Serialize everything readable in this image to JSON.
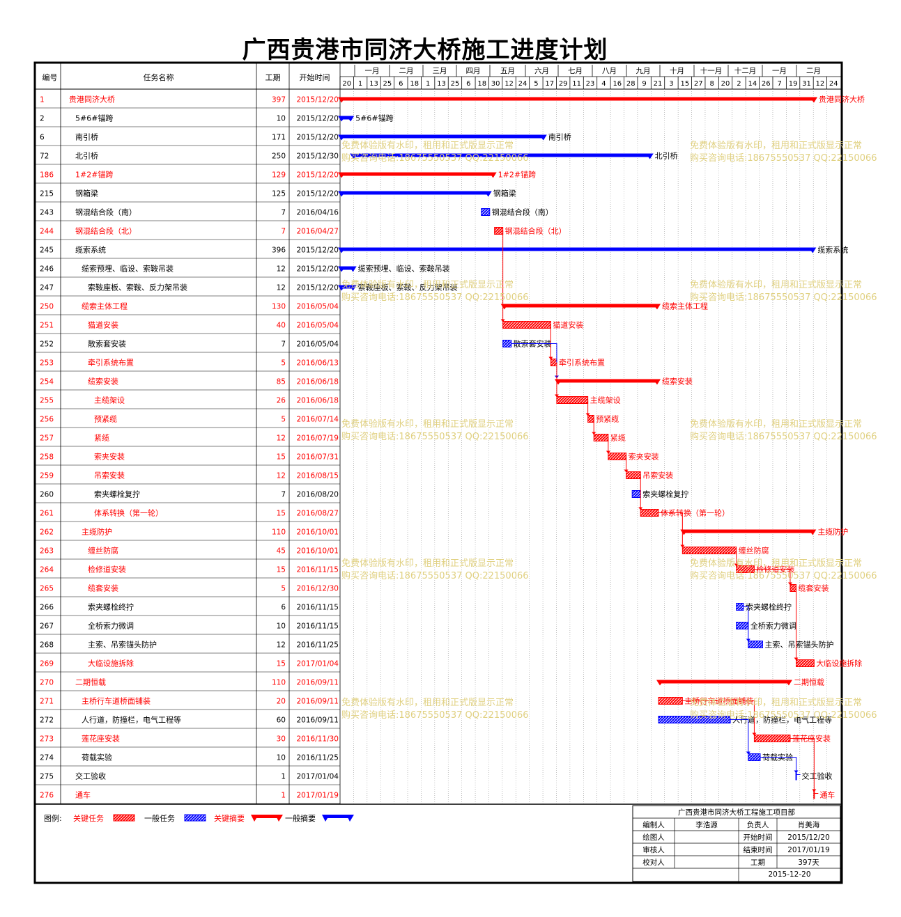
{
  "title": "广西贵港市同济大桥施工进度计划",
  "headers": {
    "id": "编号",
    "name": "任务名称",
    "duration": "工期",
    "start": "开始时间"
  },
  "months": [
    "一月",
    "二月",
    "三月",
    "四月",
    "五月",
    "六月",
    "七月",
    "八月",
    "九月",
    "十月",
    "十一月",
    "十二月",
    "一月",
    "二月"
  ],
  "days": [
    "20",
    "1",
    "13",
    "25",
    "6",
    "18",
    "1",
    "13",
    "25",
    "6",
    "18",
    "30",
    "12",
    "24",
    "5",
    "17",
    "29",
    "11",
    "23",
    "4",
    "16",
    "28",
    "9",
    "21",
    "3",
    "15",
    "27",
    "8",
    "20",
    "2",
    "14",
    "26",
    "7",
    "19",
    "31",
    "12",
    "24"
  ],
  "colors": {
    "critical": "#ff0000",
    "normal": "#0000ff",
    "critical_text": "#ff0000",
    "normal_text": "#000000"
  },
  "chart_data": {
    "type": "gantt",
    "x_range": [
      "2015-12-20",
      "2017-02-28"
    ],
    "tasks": [
      {
        "id": "1",
        "name": "贵港同济大桥",
        "duration": "397",
        "start": "2015/12/20",
        "s": "2015-12-20",
        "d": 397,
        "level": 0,
        "critical": true,
        "summary": true,
        "label": "贵港同济大桥"
      },
      {
        "id": "2",
        "name": "5#6#锚跨",
        "duration": "10",
        "start": "2015/12/20",
        "s": "2015-12-20",
        "d": 10,
        "level": 1,
        "critical": false,
        "summary": true,
        "label": "5#6#锚跨"
      },
      {
        "id": "6",
        "name": "南引桥",
        "duration": "171",
        "start": "2015/12/20",
        "s": "2015-12-20",
        "d": 171,
        "level": 1,
        "critical": false,
        "summary": true,
        "label": "南引桥"
      },
      {
        "id": "72",
        "name": "北引桥",
        "duration": "250",
        "start": "2015/12/30",
        "s": "2015-12-30",
        "d": 250,
        "level": 1,
        "critical": false,
        "summary": true,
        "label": "北引桥"
      },
      {
        "id": "186",
        "name": "1#2#锚跨",
        "duration": "129",
        "start": "2015/12/20",
        "s": "2015-12-20",
        "d": 129,
        "level": 1,
        "critical": true,
        "summary": true,
        "label": "1#2#锚跨"
      },
      {
        "id": "215",
        "name": "钢箱梁",
        "duration": "125",
        "start": "2015/12/20",
        "s": "2015-12-20",
        "d": 125,
        "level": 1,
        "critical": false,
        "summary": true,
        "label": "钢箱梁"
      },
      {
        "id": "243",
        "name": "钢混结合段（南）",
        "duration": "7",
        "start": "2016/04/16",
        "s": "2016-04-16",
        "d": 7,
        "level": 1,
        "critical": false,
        "summary": false,
        "label": "钢混结合段（南）"
      },
      {
        "id": "244",
        "name": "钢混结合段（北）",
        "duration": "7",
        "start": "2016/04/27",
        "s": "2016-04-27",
        "d": 7,
        "level": 1,
        "critical": true,
        "summary": false,
        "label": "钢混结合段（北）"
      },
      {
        "id": "245",
        "name": "缆索系统",
        "duration": "396",
        "start": "2015/12/20",
        "s": "2015-12-20",
        "d": 396,
        "level": 1,
        "critical": false,
        "summary": true,
        "label": "缆索系统"
      },
      {
        "id": "246",
        "name": "缆索预埋、临设、索鞍吊装",
        "duration": "12",
        "start": "2015/12/20",
        "s": "2015-12-20",
        "d": 12,
        "level": 2,
        "critical": false,
        "summary": true,
        "label": "缆索预埋、临设、索鞍吊装"
      },
      {
        "id": "247",
        "name": "索鞍座板、索鞍、反力架吊装",
        "duration": "12",
        "start": "2015/12/20",
        "s": "2015-12-20",
        "d": 12,
        "level": 3,
        "critical": false,
        "summary": true,
        "label": "索鞍座板、索鞍、反力架吊装"
      },
      {
        "id": "250",
        "name": "缆索主体工程",
        "duration": "130",
        "start": "2016/05/04",
        "s": "2016-05-04",
        "d": 130,
        "level": 2,
        "critical": true,
        "summary": true,
        "label": "缆索主体工程"
      },
      {
        "id": "251",
        "name": "猫道安装",
        "duration": "40",
        "start": "2016/05/04",
        "s": "2016-05-04",
        "d": 40,
        "level": 3,
        "critical": true,
        "summary": false,
        "label": "猫道安装"
      },
      {
        "id": "252",
        "name": "散索套安装",
        "duration": "7",
        "start": "2016/05/04",
        "s": "2016-05-04",
        "d": 7,
        "level": 3,
        "critical": false,
        "summary": false,
        "label": "散索套安装"
      },
      {
        "id": "253",
        "name": "牵引系统布置",
        "duration": "5",
        "start": "2016/06/13",
        "s": "2016-06-13",
        "d": 5,
        "level": 3,
        "critical": true,
        "summary": false,
        "label": "牵引系统布置"
      },
      {
        "id": "254",
        "name": "缆索安装",
        "duration": "85",
        "start": "2016/06/18",
        "s": "2016-06-18",
        "d": 85,
        "level": 3,
        "critical": true,
        "summary": true,
        "label": "缆索安装"
      },
      {
        "id": "255",
        "name": "主缆架设",
        "duration": "26",
        "start": "2016/06/18",
        "s": "2016-06-18",
        "d": 26,
        "level": 4,
        "critical": true,
        "summary": false,
        "label": "主缆架设"
      },
      {
        "id": "256",
        "name": "预紧缆",
        "duration": "5",
        "start": "2016/07/14",
        "s": "2016-07-14",
        "d": 5,
        "level": 4,
        "critical": true,
        "summary": false,
        "label": "预紧缆"
      },
      {
        "id": "257",
        "name": "紧缆",
        "duration": "12",
        "start": "2016/07/19",
        "s": "2016-07-19",
        "d": 12,
        "level": 4,
        "critical": true,
        "summary": false,
        "label": "紧缆"
      },
      {
        "id": "258",
        "name": "索夹安装",
        "duration": "15",
        "start": "2016/07/31",
        "s": "2016-07-31",
        "d": 15,
        "level": 4,
        "critical": true,
        "summary": false,
        "label": "索夹安装"
      },
      {
        "id": "259",
        "name": "吊索安装",
        "duration": "12",
        "start": "2016/08/15",
        "s": "2016-08-15",
        "d": 12,
        "level": 4,
        "critical": true,
        "summary": false,
        "label": "吊索安装"
      },
      {
        "id": "260",
        "name": "索夹螺栓复拧",
        "duration": "7",
        "start": "2016/08/20",
        "s": "2016-08-20",
        "d": 7,
        "level": 4,
        "critical": false,
        "summary": false,
        "label": "索夹螺栓复拧"
      },
      {
        "id": "261",
        "name": "体系转换（第一轮）",
        "duration": "15",
        "start": "2016/08/27",
        "s": "2016-08-27",
        "d": 15,
        "level": 4,
        "critical": true,
        "summary": false,
        "label": "体系转换（第一轮）"
      },
      {
        "id": "262",
        "name": "主缆防护",
        "duration": "110",
        "start": "2016/10/01",
        "s": "2016-10-01",
        "d": 110,
        "level": 2,
        "critical": true,
        "summary": true,
        "label": "主缆防护"
      },
      {
        "id": "263",
        "name": "缠丝防腐",
        "duration": "45",
        "start": "2016/10/01",
        "s": "2016-10-01",
        "d": 45,
        "level": 3,
        "critical": true,
        "summary": false,
        "label": "缠丝防腐"
      },
      {
        "id": "264",
        "name": "检修道安装",
        "duration": "15",
        "start": "2016/11/15",
        "s": "2016-11-15",
        "d": 15,
        "level": 3,
        "critical": true,
        "summary": false,
        "label": "检修道安装"
      },
      {
        "id": "265",
        "name": "缆套安装",
        "duration": "5",
        "start": "2016/12/30",
        "s": "2016-12-30",
        "d": 5,
        "level": 3,
        "critical": true,
        "summary": false,
        "label": "缆套安装"
      },
      {
        "id": "266",
        "name": "索夹螺栓终拧",
        "duration": "6",
        "start": "2016/11/15",
        "s": "2016-11-15",
        "d": 6,
        "level": 3,
        "critical": false,
        "summary": false,
        "label": "索夹螺栓终拧"
      },
      {
        "id": "267",
        "name": "全桥索力微调",
        "duration": "10",
        "start": "2016/11/15",
        "s": "2016-11-15",
        "d": 10,
        "level": 3,
        "critical": false,
        "summary": false,
        "label": "全桥索力微调"
      },
      {
        "id": "268",
        "name": "主索、吊索锚头防护",
        "duration": "12",
        "start": "2016/11/25",
        "s": "2016-11-25",
        "d": 12,
        "level": 3,
        "critical": false,
        "summary": false,
        "label": "主索、吊索锚头防护"
      },
      {
        "id": "269",
        "name": "大临设施拆除",
        "duration": "15",
        "start": "2017/01/04",
        "s": "2017-01-04",
        "d": 15,
        "level": 3,
        "critical": true,
        "summary": false,
        "label": "大临设施拆除"
      },
      {
        "id": "270",
        "name": "二期恒载",
        "duration": "110",
        "start": "2016/09/11",
        "s": "2016-09-11",
        "d": 110,
        "level": 1,
        "critical": true,
        "summary": true,
        "label": "二期恒载"
      },
      {
        "id": "271",
        "name": "主桥行车道桥面铺装",
        "duration": "20",
        "start": "2016/09/11",
        "s": "2016-09-11",
        "d": 20,
        "level": 2,
        "critical": true,
        "summary": false,
        "label": "主桥行车道桥面铺装"
      },
      {
        "id": "272",
        "name": "人行道，防撞栏，电气工程等",
        "duration": "60",
        "start": "2016/09/11",
        "s": "2016-09-11",
        "d": 60,
        "level": 2,
        "critical": false,
        "summary": false,
        "label": "人行道，防撞栏，电气工程等"
      },
      {
        "id": "273",
        "name": "莲花座安装",
        "duration": "30",
        "start": "2016/11/30",
        "s": "2016-11-30",
        "d": 30,
        "level": 2,
        "critical": true,
        "summary": false,
        "label": "莲花座安装"
      },
      {
        "id": "274",
        "name": "荷载实验",
        "duration": "10",
        "start": "2016/11/25",
        "s": "2016-11-25",
        "d": 10,
        "level": 2,
        "critical": false,
        "summary": false,
        "label": "荷载实验"
      },
      {
        "id": "275",
        "name": "交工验收",
        "duration": "1",
        "start": "2017/01/04",
        "s": "2017-01-04",
        "d": 1,
        "level": 1,
        "critical": false,
        "summary": false,
        "milestone": true,
        "label": "交工验收"
      },
      {
        "id": "276",
        "name": "通车",
        "duration": "1",
        "start": "2017/01/19",
        "s": "2017-01-19",
        "d": 1,
        "level": 1,
        "critical": true,
        "summary": false,
        "milestone": true,
        "label": "通车"
      }
    ]
  },
  "watermark": {
    "line1": "免费体验版有水印，租用和正式版显示正常",
    "line2": "购买咨询电话:18675550537 QQ:22150066"
  },
  "legend": {
    "label": "图例:",
    "critical_task": "关键任务",
    "normal_task": "一般任务",
    "critical_summary": "关键摘要",
    "normal_summary": "一般摘要"
  },
  "info": {
    "org": "广西贵港市同济大桥工程施工项目部",
    "rows": [
      [
        "编制人",
        "李浩源",
        "负责人",
        "肖美海"
      ],
      [
        "绘图人",
        "",
        "开始时间",
        "2015/12/20"
      ],
      [
        "审核人",
        "",
        "结束时间",
        "2017/01/19"
      ],
      [
        "校对人",
        "",
        "工期",
        "397天"
      ]
    ],
    "date": "2015-12-20"
  }
}
